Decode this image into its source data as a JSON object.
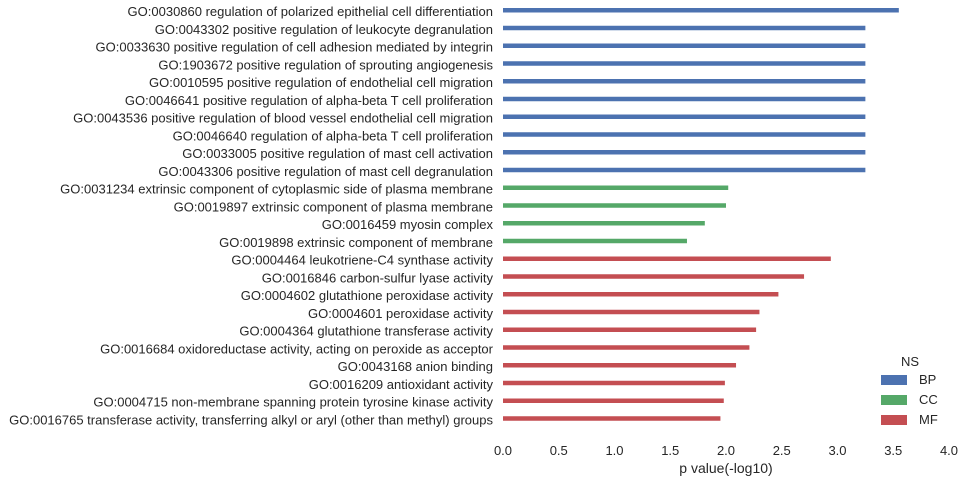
{
  "chart_data": {
    "type": "bar",
    "orientation": "horizontal",
    "xlabel": "p value(-log10)",
    "ylabel": "",
    "xlim": [
      0.0,
      4.0
    ],
    "xticks": [
      "0.0",
      "0.5",
      "1.0",
      "1.5",
      "2.0",
      "2.5",
      "3.0",
      "3.5",
      "4.0"
    ],
    "grid": false,
    "legend": {
      "title": "NS",
      "placement": "bottom-right",
      "entries": [
        {
          "name": "BP",
          "color": "#4c72b0"
        },
        {
          "name": "CC",
          "color": "#55a868"
        },
        {
          "name": "MF",
          "color": "#c44e52"
        }
      ]
    },
    "bars": [
      {
        "label": "GO:0030860 regulation of polarized epithelial cell differentiation",
        "value": 3.55,
        "group": "BP"
      },
      {
        "label": "GO:0043302 positive regulation of leukocyte degranulation",
        "value": 3.25,
        "group": "BP"
      },
      {
        "label": "GO:0033630 positive regulation of cell adhesion mediated by integrin",
        "value": 3.25,
        "group": "BP"
      },
      {
        "label": "GO:1903672 positive regulation of sprouting angiogenesis",
        "value": 3.25,
        "group": "BP"
      },
      {
        "label": "GO:0010595 positive regulation of endothelial cell migration",
        "value": 3.25,
        "group": "BP"
      },
      {
        "label": "GO:0046641 positive regulation of alpha-beta T cell proliferation",
        "value": 3.25,
        "group": "BP"
      },
      {
        "label": "GO:0043536 positive regulation of blood vessel endothelial cell migration",
        "value": 3.25,
        "group": "BP"
      },
      {
        "label": "GO:0046640 regulation of alpha-beta T cell proliferation",
        "value": 3.25,
        "group": "BP"
      },
      {
        "label": "GO:0033005 positive regulation of mast cell activation",
        "value": 3.25,
        "group": "BP"
      },
      {
        "label": "GO:0043306 positive regulation of mast cell degranulation",
        "value": 3.25,
        "group": "BP"
      },
      {
        "label": "GO:0031234 extrinsic component of cytoplasmic side of plasma membrane",
        "value": 2.02,
        "group": "CC"
      },
      {
        "label": "GO:0019897 extrinsic component of plasma membrane",
        "value": 2.0,
        "group": "CC"
      },
      {
        "label": "GO:0016459 myosin complex",
        "value": 1.81,
        "group": "CC"
      },
      {
        "label": "GO:0019898 extrinsic component of membrane",
        "value": 1.65,
        "group": "CC"
      },
      {
        "label": "GO:0004464 leukotriene-C4 synthase activity",
        "value": 2.94,
        "group": "MF"
      },
      {
        "label": "GO:0016846 carbon-sulfur lyase activity",
        "value": 2.7,
        "group": "MF"
      },
      {
        "label": "GO:0004602 glutathione peroxidase activity",
        "value": 2.47,
        "group": "MF"
      },
      {
        "label": "GO:0004601 peroxidase activity",
        "value": 2.3,
        "group": "MF"
      },
      {
        "label": "GO:0004364 glutathione transferase activity",
        "value": 2.27,
        "group": "MF"
      },
      {
        "label": "GO:0016684 oxidoreductase activity, acting on peroxide as acceptor",
        "value": 2.21,
        "group": "MF"
      },
      {
        "label": "GO:0043168 anion binding",
        "value": 2.09,
        "group": "MF"
      },
      {
        "label": "GO:0016209 antioxidant activity",
        "value": 1.99,
        "group": "MF"
      },
      {
        "label": "GO:0004715 non-membrane spanning protein tyrosine kinase activity",
        "value": 1.98,
        "group": "MF"
      },
      {
        "label": "GO:0016765 transferase activity, transferring alkyl or aryl (other than methyl) groups",
        "value": 1.95,
        "group": "MF"
      }
    ]
  }
}
